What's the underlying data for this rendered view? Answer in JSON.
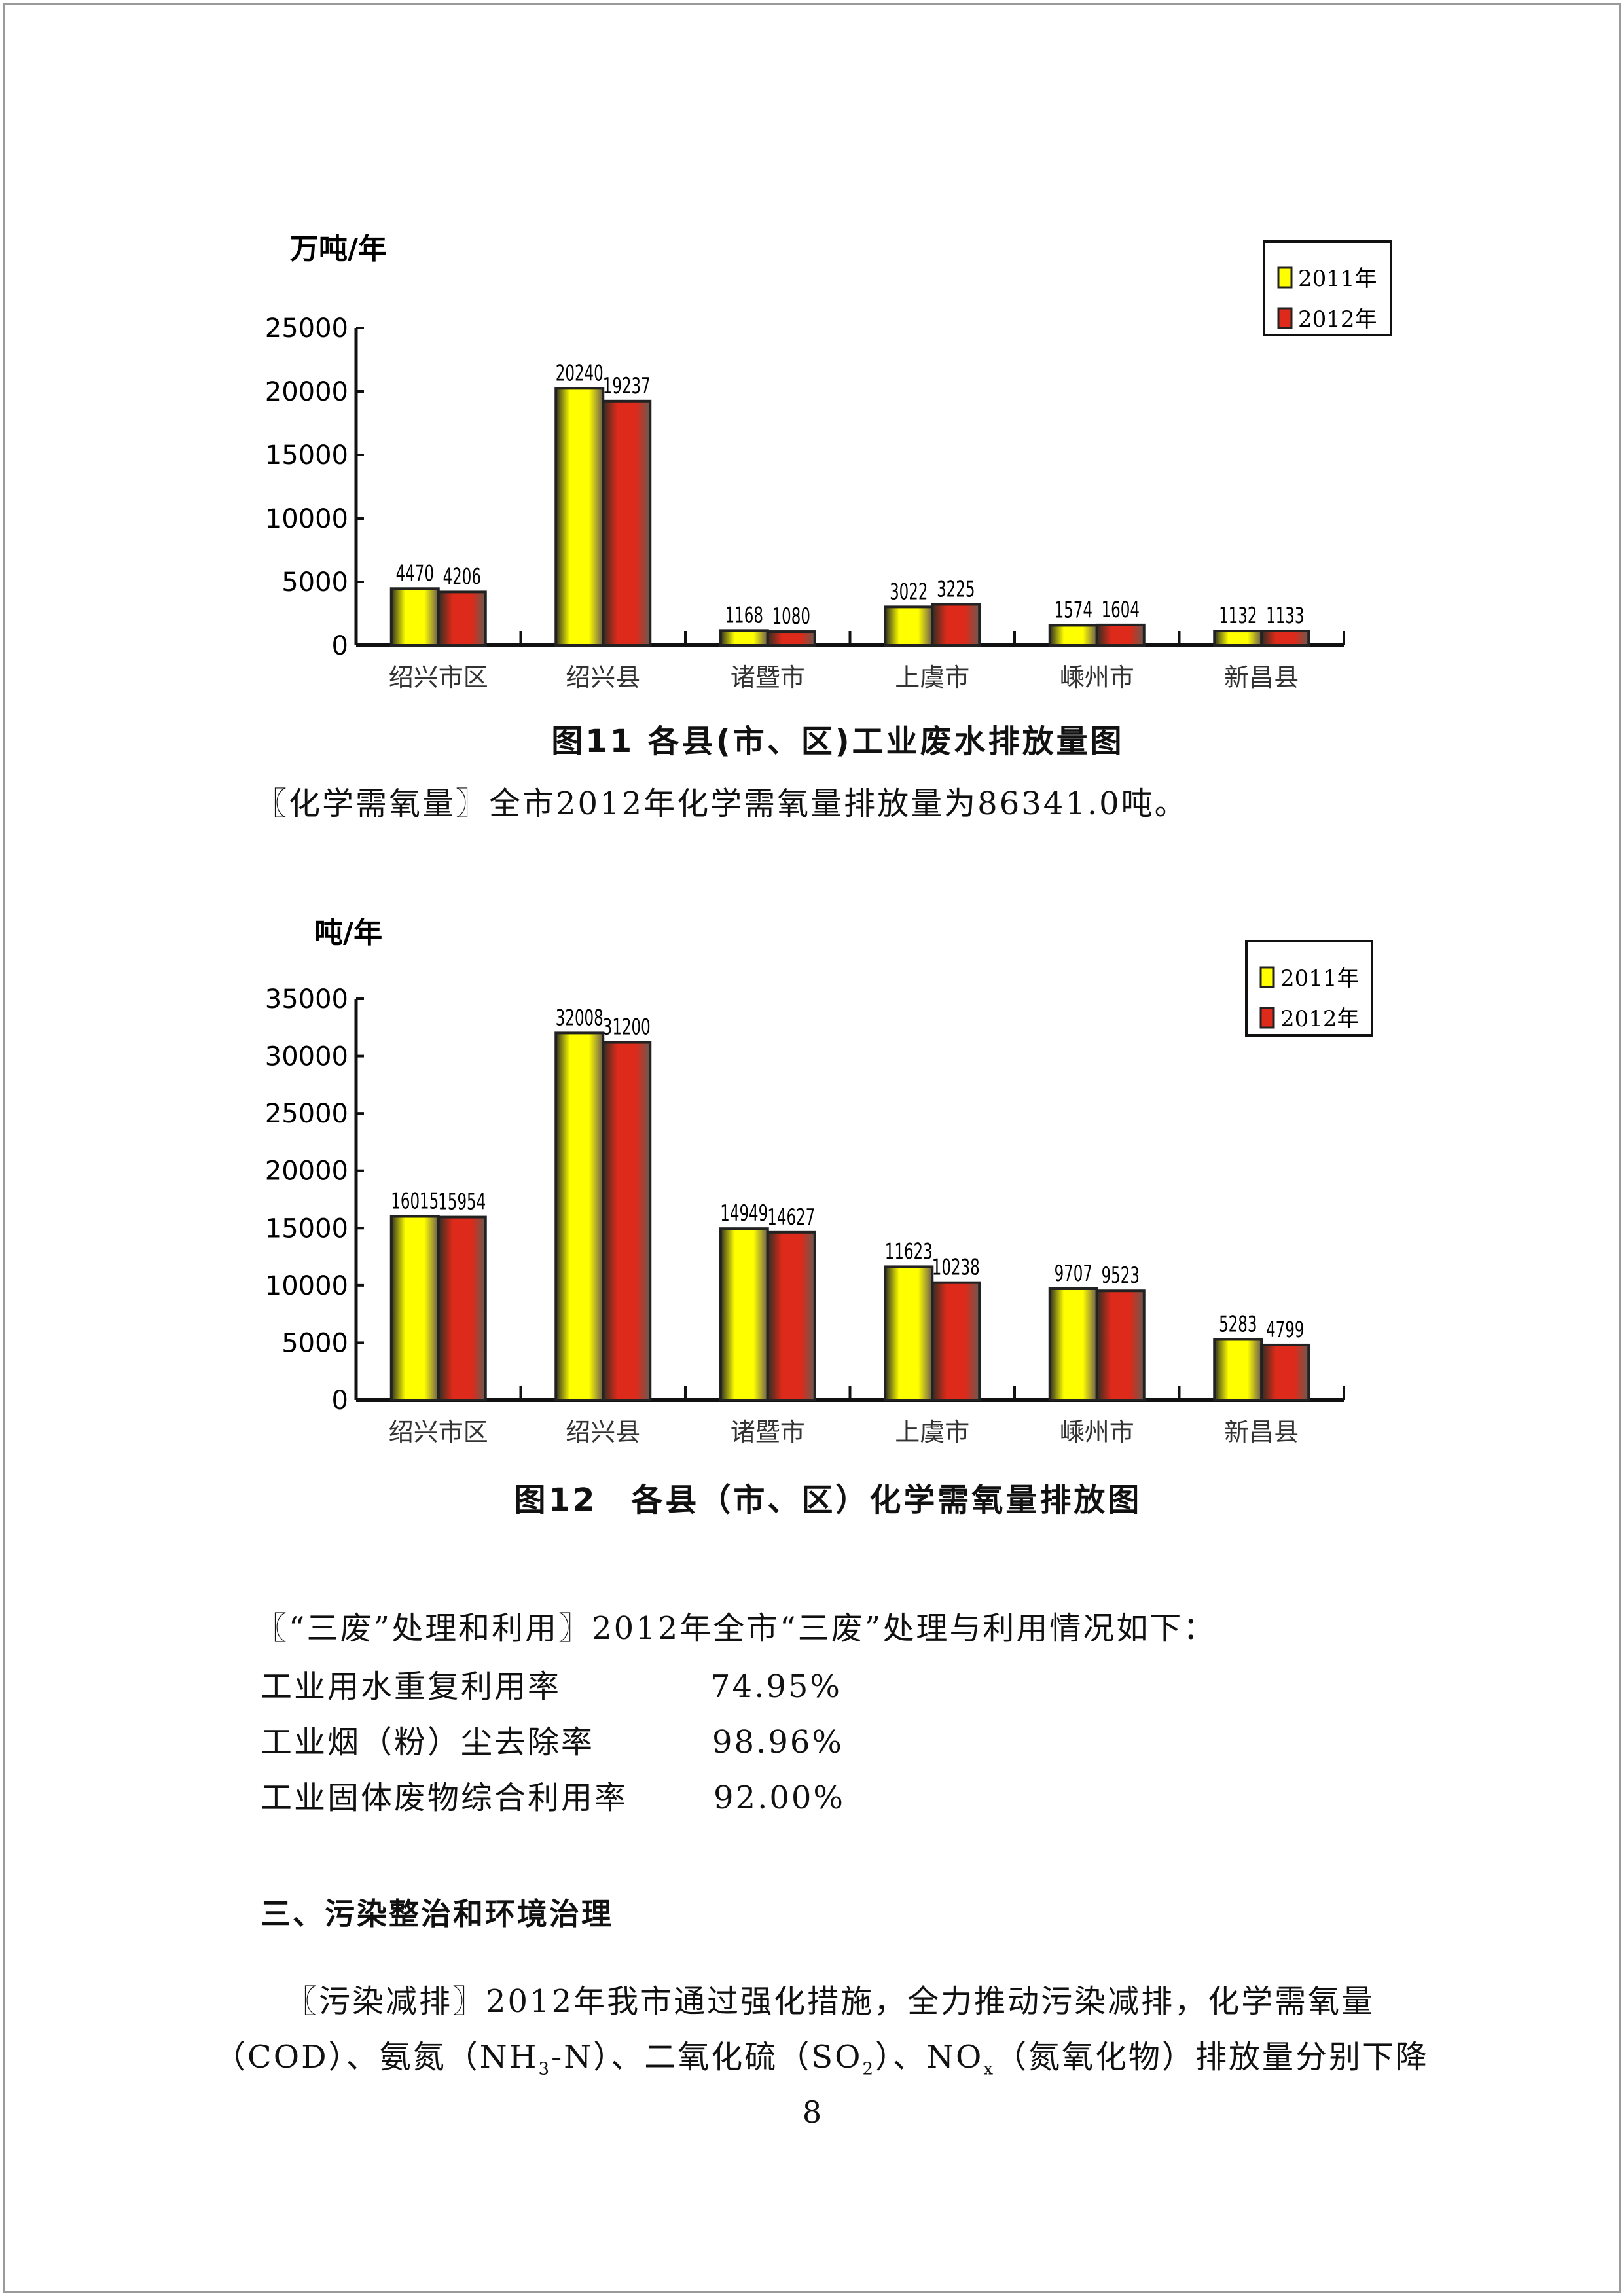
{
  "chart_data": [
    {
      "type": "bar",
      "ylabel": "万吨/年",
      "ylim": [
        0,
        25000
      ],
      "yticks": [
        0,
        5000,
        10000,
        15000,
        20000,
        25000
      ],
      "categories": [
        "绍兴市区",
        "绍兴县",
        "诸暨市",
        "上虞市",
        "嵊州市",
        "新昌县"
      ],
      "series": [
        {
          "name": "2011年",
          "color": "#ffff00",
          "values": [
            4470,
            20240,
            1168,
            3022,
            1574,
            1132
          ]
        },
        {
          "name": "2012年",
          "color": "#dd2a1a",
          "values": [
            4206,
            19237,
            1080,
            3225,
            1604,
            1133
          ]
        }
      ],
      "legend": "top-right",
      "grid": false,
      "caption": "图11 各县(市、区)工业废水排放量图"
    },
    {
      "type": "bar",
      "ylabel": "吨/年",
      "ylim": [
        0,
        35000
      ],
      "yticks": [
        0,
        5000,
        10000,
        15000,
        20000,
        25000,
        30000,
        35000
      ],
      "categories": [
        "绍兴市区",
        "绍兴县",
        "诸暨市",
        "上虞市",
        "嵊州市",
        "新昌县"
      ],
      "series": [
        {
          "name": "2011年",
          "color": "#ffff00",
          "values": [
            16015,
            32008,
            14949,
            11623,
            9707,
            5283
          ]
        },
        {
          "name": "2012年",
          "color": "#dd2a1a",
          "values": [
            15954,
            31200,
            14627,
            10238,
            9523,
            4799
          ]
        }
      ],
      "legend": "top-right",
      "grid": false,
      "caption": "图12　各县（市、区）化学需氧量排放图"
    }
  ],
  "text": {
    "cod_para": "〖化学需氧量〗全市2012年化学需氧量排放量为86341.0吨。",
    "waste_intro": "〖“三废”处理和利用〗2012年全市“三废”处理与利用情况如下：",
    "rates": [
      {
        "label": "工业用水重复利用率",
        "value": "74.95%"
      },
      {
        "label": "工业烟（粉）尘去除率",
        "value": "98.96%"
      },
      {
        "label": "工业固体废物综合利用率",
        "value": "92.00%"
      }
    ],
    "section_heading": "三、污染整治和环境治理",
    "para1_line1": "〖污染减排〗2012年我市通过强化措施，全力推动污染减排，化学需氧量",
    "para1_line2_a": "（COD）、氨氮（NH",
    "para1_line2_sub1": "3",
    "para1_line2_b": "-N）、二氧化硫（SO",
    "para1_line2_sub2": "2",
    "para1_line2_c": "）、NO",
    "para1_line2_sub3": "x",
    "para1_line2_d": "（氮氧化物）排放量分别下降",
    "page_number": "8"
  }
}
